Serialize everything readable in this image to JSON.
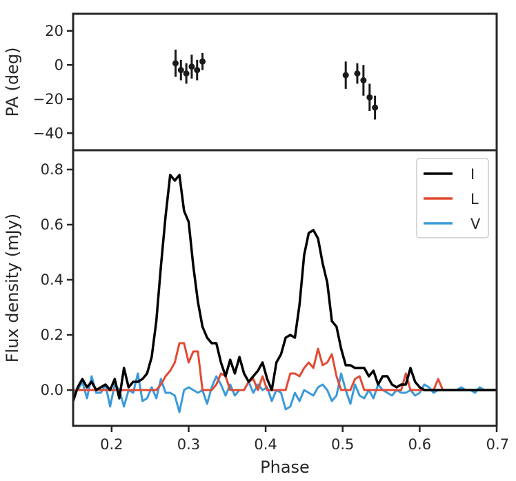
{
  "chart_data": [
    {
      "type": "scatter",
      "panel": "top",
      "xlabel": "",
      "ylabel": "PA (deg)",
      "xlim": [
        0.15,
        0.7
      ],
      "ylim": [
        -50,
        30
      ],
      "yticks": [
        20,
        0,
        -20,
        -40
      ],
      "yticklabels": [
        "20",
        "0",
        "−20",
        "−40"
      ],
      "color": "#1a1a1a",
      "points": [
        {
          "x": 0.283,
          "y": 1,
          "err": 8
        },
        {
          "x": 0.29,
          "y": -3,
          "err": 6
        },
        {
          "x": 0.297,
          "y": -5,
          "err": 6
        },
        {
          "x": 0.304,
          "y": -1,
          "err": 7
        },
        {
          "x": 0.311,
          "y": -3,
          "err": 6
        },
        {
          "x": 0.318,
          "y": 2,
          "err": 5
        },
        {
          "x": 0.504,
          "y": -6,
          "err": 8
        },
        {
          "x": 0.519,
          "y": -5,
          "err": 6
        },
        {
          "x": 0.527,
          "y": -9,
          "err": 9
        },
        {
          "x": 0.535,
          "y": -19,
          "err": 8
        },
        {
          "x": 0.542,
          "y": -25,
          "err": 7
        }
      ]
    },
    {
      "type": "line",
      "panel": "bottom",
      "xlabel": "Phase",
      "ylabel": "Flux density (mJy)",
      "xlim": [
        0.15,
        0.7
      ],
      "ylim": [
        -0.13,
        0.87
      ],
      "xticks": [
        0.2,
        0.3,
        0.4,
        0.5,
        0.6,
        0.7
      ],
      "xticklabels": [
        "0.2",
        "0.3",
        "0.4",
        "0.5",
        "0.6",
        "0.7"
      ],
      "yticks": [
        0.0,
        0.2,
        0.4,
        0.6,
        0.8
      ],
      "yticklabels": [
        "0.0",
        "0.2",
        "0.4",
        "0.6",
        "0.8"
      ],
      "legend": "top-right",
      "x": [
        0.15,
        0.156,
        0.162,
        0.168,
        0.174,
        0.18,
        0.186,
        0.192,
        0.198,
        0.204,
        0.21,
        0.216,
        0.222,
        0.228,
        0.234,
        0.24,
        0.246,
        0.252,
        0.258,
        0.264,
        0.27,
        0.276,
        0.282,
        0.288,
        0.294,
        0.3,
        0.306,
        0.312,
        0.318,
        0.324,
        0.33,
        0.336,
        0.342,
        0.348,
        0.354,
        0.36,
        0.366,
        0.372,
        0.378,
        0.384,
        0.39,
        0.396,
        0.402,
        0.408,
        0.414,
        0.42,
        0.426,
        0.432,
        0.438,
        0.444,
        0.45,
        0.456,
        0.462,
        0.468,
        0.474,
        0.48,
        0.486,
        0.492,
        0.498,
        0.504,
        0.51,
        0.516,
        0.522,
        0.528,
        0.534,
        0.54,
        0.546,
        0.552,
        0.558,
        0.564,
        0.57,
        0.576,
        0.582,
        0.588,
        0.594,
        0.6,
        0.606,
        0.612,
        0.618,
        0.624,
        0.63,
        0.636,
        0.642,
        0.648,
        0.654,
        0.66,
        0.666,
        0.672,
        0.678,
        0.684,
        0.69,
        0.696,
        0.7
      ],
      "series": [
        {
          "name": "I",
          "color": "#000000",
          "values": [
            -0.04,
            0.01,
            0.04,
            0.01,
            0.03,
            0.0,
            0.01,
            0.02,
            0.0,
            0.04,
            -0.03,
            0.08,
            0.01,
            0.03,
            0.03,
            0.04,
            0.06,
            0.12,
            0.25,
            0.45,
            0.63,
            0.78,
            0.76,
            0.78,
            0.65,
            0.61,
            0.45,
            0.32,
            0.23,
            0.19,
            0.17,
            0.17,
            0.1,
            0.05,
            0.11,
            0.06,
            0.12,
            0.06,
            0.03,
            0.05,
            0.07,
            0.1,
            0.04,
            0.0,
            0.1,
            0.13,
            0.19,
            0.2,
            0.19,
            0.31,
            0.49,
            0.57,
            0.58,
            0.55,
            0.46,
            0.39,
            0.25,
            0.23,
            0.15,
            0.09,
            0.09,
            0.08,
            0.08,
            0.08,
            0.05,
            0.07,
            0.02,
            0.05,
            0.05,
            0.02,
            0.01,
            0.02,
            0.02,
            0.08,
            0.03,
            0.01,
            0.0,
            0.0,
            0.0,
            0.0,
            0.0,
            0.0,
            0.0,
            0.0,
            0.0,
            0.0,
            0.0,
            0.0,
            0.0,
            0.0,
            0.0,
            0.0,
            0.0
          ]
        },
        {
          "name": "L",
          "color": "#e24a33",
          "values": [
            0.0,
            0.0,
            0.0,
            0.0,
            0.0,
            0.0,
            0.0,
            0.0,
            0.0,
            0.0,
            0.0,
            0.0,
            0.0,
            0.0,
            0.0,
            0.0,
            0.0,
            0.0,
            0.0,
            0.02,
            0.05,
            0.07,
            0.1,
            0.17,
            0.17,
            0.1,
            0.14,
            0.14,
            0.0,
            0.0,
            0.0,
            0.02,
            0.06,
            0.05,
            0.0,
            0.0,
            0.0,
            0.0,
            0.03,
            0.04,
            0.0,
            0.05,
            0.0,
            0.0,
            0.0,
            0.0,
            0.0,
            0.06,
            0.06,
            0.05,
            0.08,
            0.1,
            0.08,
            0.15,
            0.09,
            0.1,
            0.13,
            0.05,
            0.0,
            0.0,
            0.0,
            0.04,
            0.05,
            0.0,
            0.0,
            0.0,
            0.0,
            0.0,
            0.0,
            0.0,
            0.0,
            0.0,
            0.06,
            0.0,
            0.0,
            0.0,
            0.0,
            0.0,
            0.0,
            0.04,
            0.0,
            0.0,
            0.0,
            0.0,
            0.0,
            0.0,
            0.0,
            0.0,
            0.0,
            0.0,
            0.0,
            0.0,
            0.0
          ]
        },
        {
          "name": "V",
          "color": "#3a9ad9",
          "values": [
            -0.01,
            0.0,
            0.03,
            -0.03,
            0.05,
            -0.01,
            -0.01,
            0.02,
            -0.06,
            0.02,
            0.0,
            -0.06,
            0.0,
            -0.01,
            0.06,
            -0.04,
            -0.03,
            0.01,
            -0.03,
            0.04,
            -0.01,
            -0.01,
            -0.02,
            -0.08,
            0.0,
            0.01,
            0.0,
            -0.01,
            0.0,
            -0.05,
            0.01,
            0.05,
            0.02,
            -0.02,
            0.02,
            -0.02,
            0.0,
            0.0,
            0.03,
            -0.01,
            0.02,
            0.0,
            0.01,
            -0.04,
            0.0,
            -0.01,
            -0.07,
            -0.06,
            -0.01,
            -0.04,
            0.0,
            -0.01,
            -0.02,
            0.01,
            0.02,
            0.0,
            -0.04,
            -0.02,
            0.06,
            0.0,
            -0.05,
            0.02,
            -0.02,
            -0.03,
            0.0,
            -0.03,
            0.02,
            0.0,
            -0.01,
            -0.02,
            0.0,
            -0.01,
            -0.01,
            0.0,
            -0.02,
            -0.01,
            0.02,
            0.01,
            -0.01,
            0.0,
            0.0,
            0.0,
            0.0,
            0.0,
            0.01,
            0.0,
            0.0,
            -0.01,
            0.01,
            0.0,
            0.0,
            0.0,
            0.0
          ]
        }
      ]
    }
  ]
}
